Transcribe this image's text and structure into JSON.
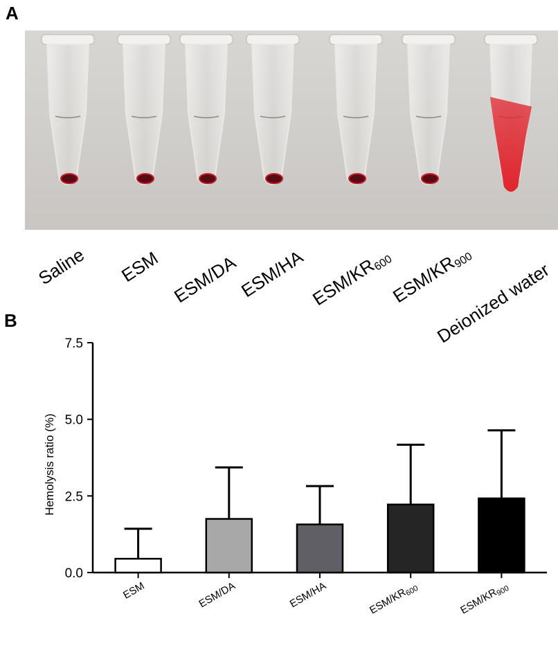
{
  "panels": {
    "a_letter": "A",
    "b_letter": "B"
  },
  "tubes": [
    {
      "main": "Saline",
      "sub": "",
      "content": "pellet"
    },
    {
      "main": "ESM",
      "sub": "",
      "content": "pellet"
    },
    {
      "main": "ESM/DA",
      "sub": "",
      "content": "pellet"
    },
    {
      "main": "ESM/HA",
      "sub": "",
      "content": "pellet"
    },
    {
      "main": "ESM/KR",
      "sub": "600",
      "content": "pellet"
    },
    {
      "main": "ESM/KR",
      "sub": "900",
      "content": "pellet"
    },
    {
      "main": "Deionized water",
      "sub": "",
      "content": "hemolyzed"
    }
  ],
  "colors": {
    "photo_bg": "#c9c6c2",
    "blood_pellet": "#5a0a12",
    "blood_pellet_rim": "#c4202e",
    "hemolyzed_red": "#e0252e"
  },
  "chart_data": {
    "type": "bar",
    "ylabel": "Hemolysis ratio (%)",
    "ylim": [
      0,
      7.5
    ],
    "yticks": [
      "0.0",
      "2.5",
      "5.0",
      "7.5"
    ],
    "categories": [
      {
        "main": "ESM",
        "sub": ""
      },
      {
        "main": "ESM/DA",
        "sub": ""
      },
      {
        "main": "ESM/HA",
        "sub": ""
      },
      {
        "main": "ESM/KR",
        "sub": "600"
      },
      {
        "main": "ESM/KR",
        "sub": "900"
      }
    ],
    "values": [
      0.45,
      1.75,
      1.57,
      2.22,
      2.42
    ],
    "errors": [
      0.98,
      1.68,
      1.25,
      1.95,
      2.22
    ],
    "bar_colors": [
      "#ffffff",
      "#a8a8a8",
      "#5f5f65",
      "#252525",
      "#000000"
    ],
    "grid": false
  }
}
